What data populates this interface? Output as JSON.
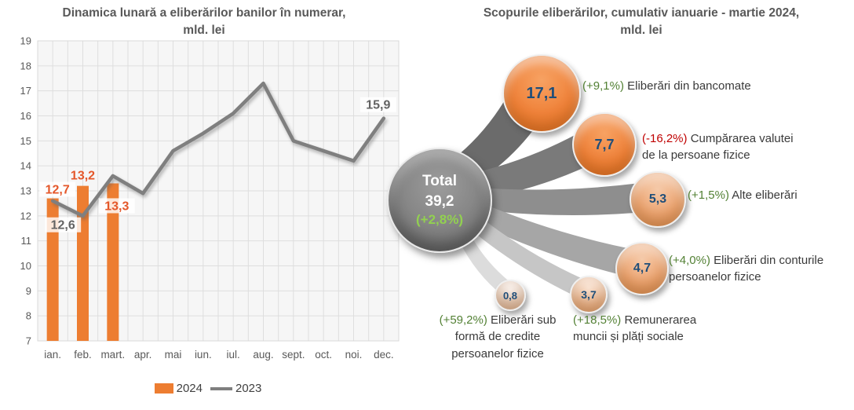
{
  "left_chart": {
    "title_line1": "Dinamica lunară a eliberărilor banilor în numerar,",
    "title_line2": "mld. lei",
    "legend": [
      {
        "label": "2024",
        "swatch": "bar-swatch",
        "color": "#ED7D31"
      },
      {
        "label": "2023",
        "swatch": "line-swatch",
        "color": "#7F7F7F"
      }
    ]
  },
  "right_chart": {
    "title_line1": "Scopurile eliberărilor, cumulativ ianuarie - martie 2024,",
    "title_line2": "mld. lei",
    "total": {
      "label": "Total",
      "value": "39,2",
      "pct": "(+2,8%)"
    },
    "bubbles": [
      {
        "value": "17,1",
        "pct": "(+9,1%)",
        "label": "Eliberări din bancomate"
      },
      {
        "value": "7,7",
        "pct": "(-16,2%)",
        "label": "Cumpărarea valutei de la persoane fizice"
      },
      {
        "value": "5,3",
        "pct": "(+1,5%)",
        "label": "Alte eliberări"
      },
      {
        "value": "4,7",
        "pct": "(+4,0%)",
        "label": "Eliberări din conturile persoanelor fizice"
      },
      {
        "value": "3,7",
        "pct": "(+18,5%)",
        "label": "Remunerarea muncii și plăți sociale"
      },
      {
        "value": "0,8",
        "pct": "(+59,2%)",
        "label": "Eliberări sub formă de credite persoanelor fizice"
      }
    ]
  },
  "chart_data": [
    {
      "type": "combo",
      "title": "Dinamica lunară a eliberărilor banilor în numerar, mld. lei",
      "categories": [
        "ian.",
        "feb.",
        "mart.",
        "apr.",
        "mai",
        "iun.",
        "iul.",
        "aug.",
        "sept.",
        "oct.",
        "noi.",
        "dec."
      ],
      "series": [
        {
          "name": "2024",
          "type": "bar",
          "values": [
            12.7,
            13.2,
            13.3,
            null,
            null,
            null,
            null,
            null,
            null,
            null,
            null,
            null
          ]
        },
        {
          "name": "2023",
          "type": "line",
          "values": [
            12.6,
            12.0,
            13.6,
            12.9,
            14.6,
            15.3,
            16.1,
            17.3,
            15.0,
            14.6,
            14.2,
            15.9
          ]
        }
      ],
      "data_labels": {
        "bar": [
          "12,7",
          "13,2",
          "13,3"
        ],
        "line_first": "12,6",
        "line_last": "15,9"
      },
      "ylim": [
        7,
        19
      ],
      "ytick_step": 1,
      "grid": true,
      "legend_position": "bottom"
    },
    {
      "type": "bubble",
      "title": "Scopurile eliberărilor, cumulativ ianuarie - martie 2024, mld. lei",
      "total": {
        "label": "Total",
        "value": 39.2,
        "change_pct": "+2,8%"
      },
      "points": [
        {
          "label": "Eliberări din bancomate",
          "value": 17.1,
          "change_pct": "+9,1%"
        },
        {
          "label": "Cumpărarea valutei de la persoane fizice",
          "value": 7.7,
          "change_pct": "-16,2%"
        },
        {
          "label": "Alte eliberări",
          "value": 5.3,
          "change_pct": "+1,5%"
        },
        {
          "label": "Eliberări din conturile persoanelor fizice",
          "value": 4.7,
          "change_pct": "+4,0%"
        },
        {
          "label": "Remunerarea muncii și plăți sociale",
          "value": 3.7,
          "change_pct": "+18,5%"
        },
        {
          "label": "Eliberări sub formă de credite persoanelor fizice",
          "value": 0.8,
          "change_pct": "+59,2%"
        }
      ]
    }
  ],
  "colors": {
    "bar": "#ED7D31",
    "bar_label": "#E4572A",
    "line": "#7F7F7F",
    "line_label": "#636363",
    "axis_text": "#595959",
    "plot_bg": "#F6F6F6",
    "grid_line": "#DEDEDE",
    "value_navy": "#1F4E79",
    "pct_green": "#538135",
    "pct_red": "#C00000",
    "total_pct_green": "#92D050"
  }
}
